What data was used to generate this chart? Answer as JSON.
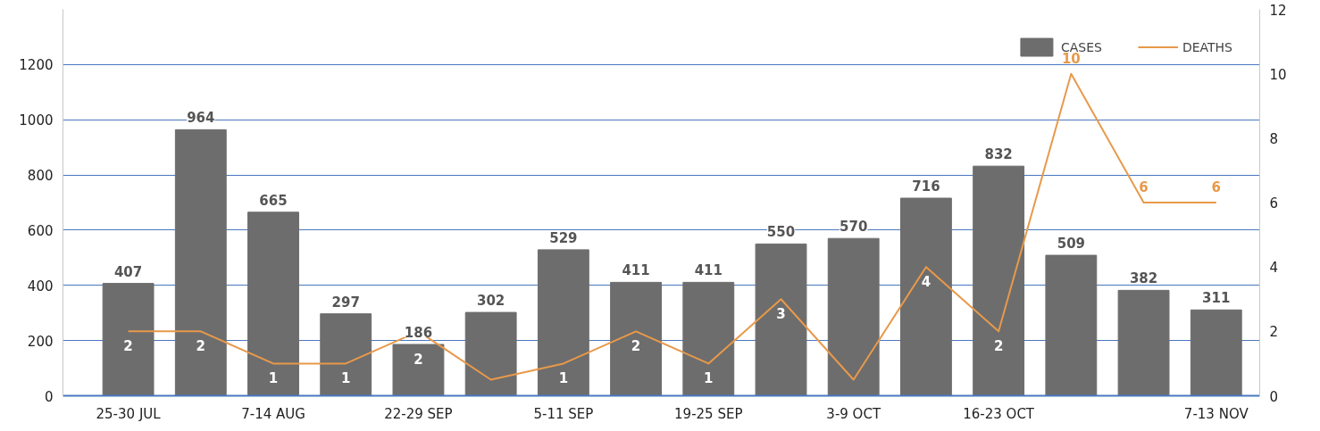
{
  "chart_data": {
    "type": "bar",
    "categories": [
      "25-30 JUL",
      null,
      "7-14 AUG",
      null,
      "22-29 SEP",
      null,
      "5-11 SEP",
      null,
      "19-25 SEP",
      null,
      "3-9 OCT",
      null,
      "16-23 OCT",
      null,
      null,
      "7-13 NOV"
    ],
    "series": [
      {
        "name": "CASES",
        "color": "#6d6d6d",
        "values": [
          407,
          964,
          665,
          297,
          186,
          302,
          529,
          411,
          411,
          550,
          570,
          716,
          832,
          509,
          382,
          311
        ],
        "data_labels": true
      },
      {
        "name": "DEATHS",
        "type": "line",
        "axis": "y2",
        "color": "#e8994a",
        "values": [
          2,
          2,
          1,
          1,
          2,
          0.5,
          1,
          2,
          1,
          3,
          0.5,
          4,
          2,
          10,
          6,
          6
        ],
        "value_labels": [
          "2",
          "2",
          "1",
          "1",
          "2",
          null,
          "1",
          "2",
          "1",
          "3",
          null,
          "4",
          "2",
          "10",
          "6",
          "6"
        ]
      }
    ],
    "ylim": [
      0,
      1400
    ],
    "yticks": [
      0,
      200,
      400,
      600,
      800,
      1000,
      1200
    ],
    "y2lim": [
      0,
      12
    ],
    "y2ticks": [
      0,
      2,
      4,
      6,
      8,
      10,
      12
    ],
    "grid": "y",
    "legend": "top right"
  }
}
